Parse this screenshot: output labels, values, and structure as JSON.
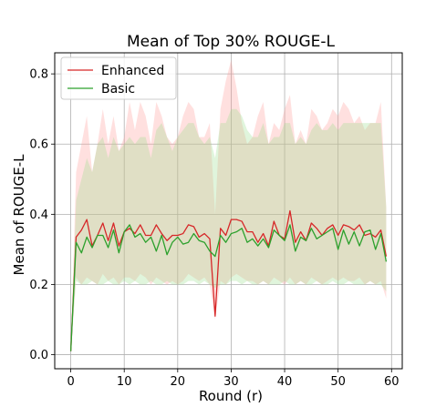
{
  "chart_data": {
    "type": "line",
    "title": "Mean of Top 30% ROUGE-L",
    "xlabel": "Round (r)",
    "ylabel": "Mean of ROUGE-L",
    "xlim": [
      -3,
      62
    ],
    "ylim": [
      -0.04,
      0.86
    ],
    "xticks": [
      0,
      10,
      20,
      30,
      40,
      50,
      60
    ],
    "yticks": [
      0.0,
      0.2,
      0.4,
      0.6,
      0.8
    ],
    "ytick_labels": [
      "0.0",
      "0.2",
      "0.4",
      "0.6",
      "0.8"
    ],
    "grid": true,
    "legend": "top-left",
    "x": [
      0,
      1,
      2,
      3,
      4,
      5,
      6,
      7,
      8,
      9,
      10,
      11,
      12,
      13,
      14,
      15,
      16,
      17,
      18,
      19,
      20,
      21,
      22,
      23,
      24,
      25,
      26,
      27,
      28,
      29,
      30,
      31,
      32,
      33,
      34,
      35,
      36,
      37,
      38,
      39,
      40,
      41,
      42,
      43,
      44,
      45,
      46,
      47,
      48,
      49,
      50,
      51,
      52,
      53,
      54,
      55,
      56,
      57,
      58,
      59
    ],
    "series": [
      {
        "name": "Enhanced",
        "color": "#d62728",
        "band_color": "#ff9896",
        "values": [
          0.01,
          0.335,
          0.355,
          0.385,
          0.31,
          0.34,
          0.375,
          0.325,
          0.375,
          0.31,
          0.35,
          0.36,
          0.345,
          0.37,
          0.34,
          0.34,
          0.37,
          0.345,
          0.325,
          0.34,
          0.34,
          0.345,
          0.37,
          0.365,
          0.335,
          0.345,
          0.33,
          0.11,
          0.36,
          0.34,
          0.385,
          0.385,
          0.38,
          0.35,
          0.35,
          0.32,
          0.345,
          0.31,
          0.38,
          0.34,
          0.33,
          0.41,
          0.32,
          0.35,
          0.325,
          0.375,
          0.36,
          0.34,
          0.36,
          0.37,
          0.34,
          0.37,
          0.365,
          0.355,
          0.37,
          0.34,
          0.345,
          0.335,
          0.355,
          0.28
        ],
        "upper": [
          0.01,
          0.52,
          0.6,
          0.68,
          0.52,
          0.6,
          0.7,
          0.6,
          0.68,
          0.58,
          0.62,
          0.72,
          0.64,
          0.72,
          0.68,
          0.6,
          0.72,
          0.68,
          0.62,
          0.6,
          0.62,
          0.68,
          0.72,
          0.7,
          0.62,
          0.62,
          0.66,
          0.4,
          0.7,
          0.78,
          0.84,
          0.76,
          0.66,
          0.6,
          0.62,
          0.68,
          0.72,
          0.6,
          0.66,
          0.64,
          0.7,
          0.74,
          0.6,
          0.64,
          0.6,
          0.7,
          0.68,
          0.64,
          0.66,
          0.7,
          0.68,
          0.72,
          0.7,
          0.66,
          0.68,
          0.64,
          0.66,
          0.66,
          0.72,
          0.42
        ],
        "lower": [
          0.01,
          0.22,
          0.2,
          0.22,
          0.21,
          0.2,
          0.23,
          0.21,
          0.22,
          0.2,
          0.22,
          0.22,
          0.21,
          0.23,
          0.22,
          0.2,
          0.22,
          0.21,
          0.2,
          0.21,
          0.2,
          0.21,
          0.23,
          0.22,
          0.21,
          0.22,
          0.2,
          0.1,
          0.21,
          0.2,
          0.22,
          0.23,
          0.22,
          0.21,
          0.21,
          0.2,
          0.21,
          0.2,
          0.22,
          0.21,
          0.2,
          0.22,
          0.2,
          0.21,
          0.2,
          0.22,
          0.21,
          0.2,
          0.21,
          0.22,
          0.21,
          0.22,
          0.21,
          0.21,
          0.22,
          0.2,
          0.21,
          0.2,
          0.21,
          0.16
        ]
      },
      {
        "name": "Basic",
        "color": "#2ca02c",
        "band_color": "#98df8a",
        "values": [
          0.01,
          0.32,
          0.29,
          0.335,
          0.305,
          0.34,
          0.34,
          0.305,
          0.355,
          0.29,
          0.35,
          0.37,
          0.335,
          0.345,
          0.32,
          0.335,
          0.295,
          0.34,
          0.285,
          0.32,
          0.335,
          0.315,
          0.32,
          0.345,
          0.325,
          0.32,
          0.295,
          0.28,
          0.34,
          0.32,
          0.345,
          0.35,
          0.36,
          0.32,
          0.33,
          0.31,
          0.33,
          0.305,
          0.355,
          0.34,
          0.325,
          0.37,
          0.295,
          0.335,
          0.325,
          0.36,
          0.33,
          0.34,
          0.35,
          0.36,
          0.3,
          0.355,
          0.315,
          0.35,
          0.31,
          0.35,
          0.355,
          0.3,
          0.345,
          0.265
        ],
        "upper": [
          0.01,
          0.44,
          0.5,
          0.56,
          0.52,
          0.6,
          0.62,
          0.56,
          0.62,
          0.58,
          0.6,
          0.62,
          0.6,
          0.62,
          0.62,
          0.56,
          0.64,
          0.66,
          0.62,
          0.58,
          0.62,
          0.64,
          0.66,
          0.66,
          0.62,
          0.6,
          0.62,
          0.56,
          0.66,
          0.66,
          0.7,
          0.7,
          0.68,
          0.64,
          0.62,
          0.62,
          0.66,
          0.6,
          0.62,
          0.62,
          0.66,
          0.66,
          0.6,
          0.62,
          0.6,
          0.64,
          0.66,
          0.64,
          0.64,
          0.66,
          0.64,
          0.66,
          0.66,
          0.66,
          0.66,
          0.66,
          0.66,
          0.66,
          0.66,
          0.42
        ],
        "lower": [
          0.01,
          0.21,
          0.2,
          0.2,
          0.21,
          0.2,
          0.2,
          0.21,
          0.2,
          0.2,
          0.21,
          0.2,
          0.21,
          0.2,
          0.2,
          0.21,
          0.2,
          0.2,
          0.21,
          0.2,
          0.2,
          0.2,
          0.21,
          0.21,
          0.2,
          0.21,
          0.2,
          0.19,
          0.2,
          0.2,
          0.21,
          0.21,
          0.2,
          0.21,
          0.2,
          0.2,
          0.21,
          0.2,
          0.2,
          0.2,
          0.21,
          0.2,
          0.2,
          0.21,
          0.2,
          0.2,
          0.21,
          0.2,
          0.2,
          0.21,
          0.2,
          0.2,
          0.21,
          0.2,
          0.2,
          0.2,
          0.21,
          0.2,
          0.2,
          0.18
        ]
      }
    ]
  }
}
